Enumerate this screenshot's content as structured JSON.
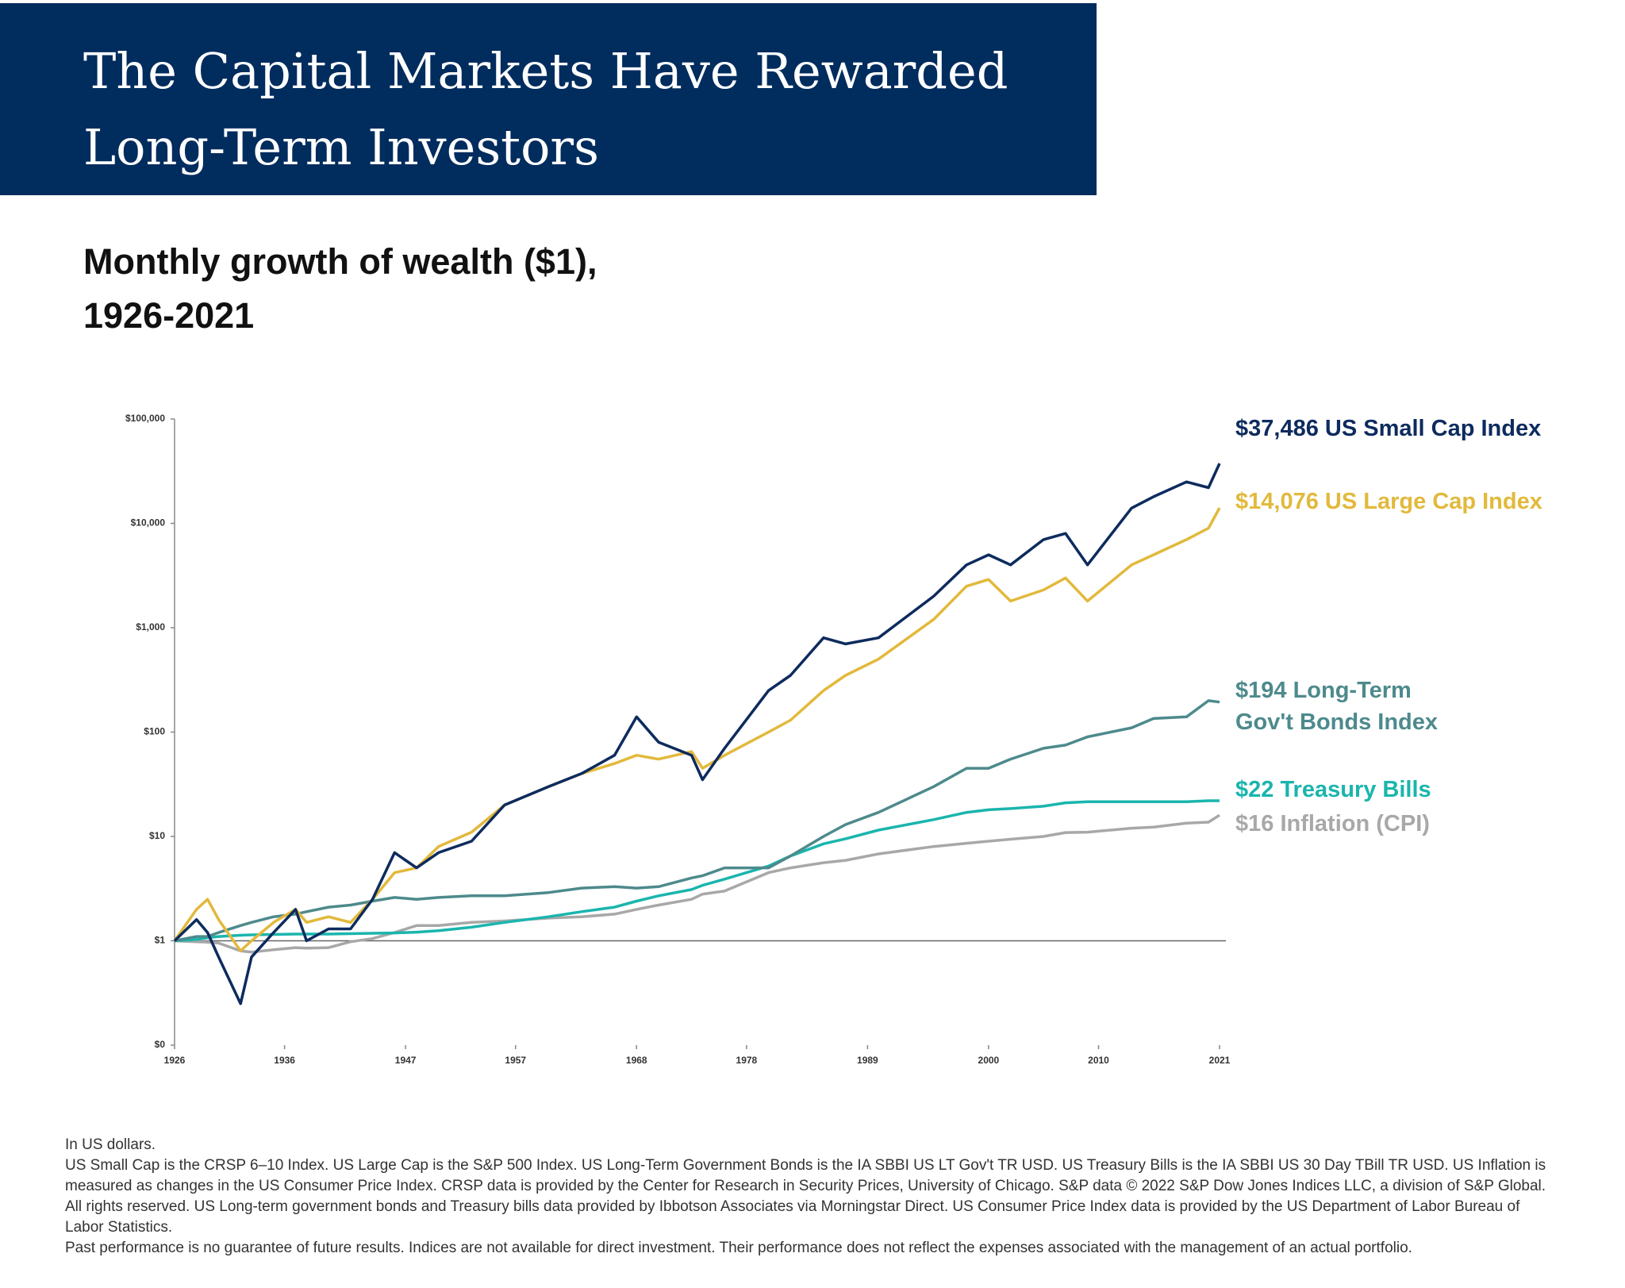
{
  "header": {
    "title": "The Capital Markets Have Rewarded Long-Term Investors"
  },
  "chart_data": {
    "type": "line",
    "subtitle": "Monthly growth of wealth ($1), 1926-2021",
    "log_scale": true,
    "x": [
      1926,
      1928,
      1929,
      1930,
      1932,
      1933,
      1935,
      1937,
      1938,
      1940,
      1942,
      1944,
      1946,
      1948,
      1950,
      1953,
      1956,
      1960,
      1963,
      1966,
      1968,
      1970,
      1973,
      1974,
      1976,
      1980,
      1982,
      1985,
      1987,
      1990,
      1995,
      1998,
      2000,
      2002,
      2005,
      2007,
      2009,
      2013,
      2015,
      2018,
      2020,
      2021
    ],
    "xlim": [
      1926,
      2021
    ],
    "xticks": [
      1926,
      1936,
      1947,
      1957,
      1968,
      1978,
      1989,
      2000,
      2010,
      2021
    ],
    "ylim": [
      0.1,
      100000
    ],
    "yticks": [
      {
        "value": 0.1,
        "label": "$0"
      },
      {
        "value": 1,
        "label": "$1"
      },
      {
        "value": 10,
        "label": "$10"
      },
      {
        "value": 100,
        "label": "$100"
      },
      {
        "value": 1000,
        "label": "$1,000"
      },
      {
        "value": 10000,
        "label": "$10,000"
      },
      {
        "value": 100000,
        "label": "$100,000"
      }
    ],
    "series": [
      {
        "label": "$37,486 US Small Cap Index",
        "color": "#0d2b5e",
        "values": [
          1,
          1.6,
          1.2,
          0.7,
          0.25,
          0.7,
          1.2,
          2,
          1,
          1.3,
          1.3,
          2.5,
          7,
          5,
          7,
          9,
          20,
          30,
          40,
          60,
          140,
          80,
          60,
          35,
          70,
          250,
          350,
          800,
          700,
          800,
          2000,
          4000,
          5000,
          4000,
          7000,
          8000,
          4000,
          14000,
          18000,
          25000,
          22000,
          37486
        ]
      },
      {
        "label": "$14,076 US Large Cap Index",
        "color": "#e2b93b",
        "values": [
          1,
          2,
          2.5,
          1.6,
          0.8,
          1,
          1.5,
          2,
          1.5,
          1.7,
          1.5,
          2.5,
          4.5,
          5,
          8,
          11,
          20,
          30,
          40,
          50,
          60,
          55,
          65,
          45,
          60,
          100,
          130,
          250,
          350,
          500,
          1200,
          2500,
          2900,
          1800,
          2300,
          3000,
          1800,
          4000,
          5000,
          7000,
          9000,
          14076
        ]
      },
      {
        "label": "$194 Long-Term Gov't Bonds Index",
        "color": "#4d8a8c",
        "values": [
          1,
          1.1,
          1.1,
          1.2,
          1.4,
          1.5,
          1.7,
          1.8,
          1.9,
          2.1,
          2.2,
          2.4,
          2.6,
          2.5,
          2.6,
          2.7,
          2.7,
          2.9,
          3.2,
          3.3,
          3.2,
          3.3,
          4,
          4.2,
          5,
          5,
          6.5,
          10,
          13,
          17,
          30,
          45,
          45,
          55,
          70,
          75,
          90,
          110,
          135,
          140,
          200,
          194
        ]
      },
      {
        "label": "$22 Treasury Bills",
        "color": "#1ab5ad",
        "values": [
          1,
          1.03,
          1.07,
          1.1,
          1.13,
          1.14,
          1.15,
          1.16,
          1.16,
          1.16,
          1.17,
          1.18,
          1.19,
          1.21,
          1.25,
          1.35,
          1.5,
          1.7,
          1.9,
          2.1,
          2.4,
          2.7,
          3.1,
          3.4,
          3.9,
          5.2,
          6.5,
          8.5,
          9.5,
          11.5,
          14.5,
          17,
          18,
          18.5,
          19.5,
          21,
          21.5,
          21.5,
          21.5,
          21.5,
          22,
          22
        ]
      },
      {
        "label": "$16 Inflation (CPI)",
        "color": "#a8a8a8",
        "values": [
          1,
          0.98,
          0.97,
          0.95,
          0.8,
          0.78,
          0.82,
          0.86,
          0.85,
          0.86,
          0.98,
          1.05,
          1.2,
          1.4,
          1.4,
          1.5,
          1.55,
          1.65,
          1.7,
          1.8,
          2,
          2.2,
          2.5,
          2.8,
          3,
          4.5,
          5,
          5.6,
          5.9,
          6.8,
          8,
          8.6,
          9,
          9.4,
          10,
          10.9,
          11,
          12,
          12.3,
          13.4,
          13.7,
          16
        ]
      }
    ]
  },
  "footnotes": [
    "In US dollars.",
    "US Small Cap is the CRSP 6–10 Index. US Large Cap is the S&P 500 Index. US Long-Term Government Bonds is the IA SBBI US LT Gov't TR USD. US Treasury Bills is the IA SBBI US 30 Day TBill TR USD. US Inflation is measured as changes in the US Consumer Price Index. CRSP data is provided by the Center for Research in Security Prices, University of Chicago. S&P data © 2022 S&P Dow Jones Indices LLC, a division of S&P Global. All rights reserved. US Long-term government bonds and Treasury bills data provided by Ibbotson Associates via Morningstar Direct. US Consumer Price Index data is provided by the US Department of Labor Bureau of Labor Statistics.",
    "Past performance is no guarantee of future results. Indices are not available for direct investment. Their performance does not reflect the expenses associated with the management of an actual portfolio."
  ]
}
